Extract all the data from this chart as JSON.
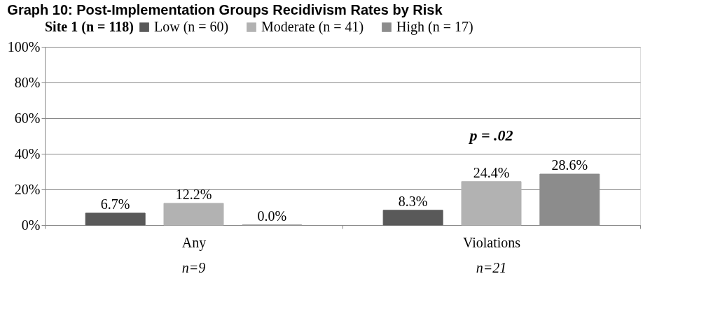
{
  "chart_data": {
    "type": "bar",
    "title": "Graph 10: Post-Implementation Groups Recidivism Rates by Risk",
    "legend_title": "Site 1 (n = 118)",
    "categories": [
      "Any",
      "Violations"
    ],
    "series": [
      {
        "name": "Low (n = 60)",
        "color": "#595959",
        "values": [
          6.7,
          8.3
        ],
        "value_labels": [
          "6.7%",
          "8.3%"
        ]
      },
      {
        "name": "Moderate (n = 41)",
        "color": "#b2b2b2",
        "values": [
          12.2,
          24.4
        ],
        "value_labels": [
          "12.2%",
          "24.4%"
        ]
      },
      {
        "name": "High (n = 17)",
        "color": "#8c8c8c",
        "values": [
          0.0,
          28.6
        ],
        "value_labels": [
          "0.0%",
          "28.6%"
        ]
      }
    ],
    "ylim": [
      0,
      100
    ],
    "yticks": [
      {
        "value": 0,
        "label": "0%"
      },
      {
        "value": 20,
        "label": "20%"
      },
      {
        "value": 40,
        "label": "40%"
      },
      {
        "value": 60,
        "label": "60%"
      },
      {
        "value": 80,
        "label": "80%"
      },
      {
        "value": 100,
        "label": "100%"
      }
    ],
    "annotations": [
      "p = .02",
      "n=9",
      "n=21"
    ],
    "grid": "y",
    "legend": "top"
  }
}
